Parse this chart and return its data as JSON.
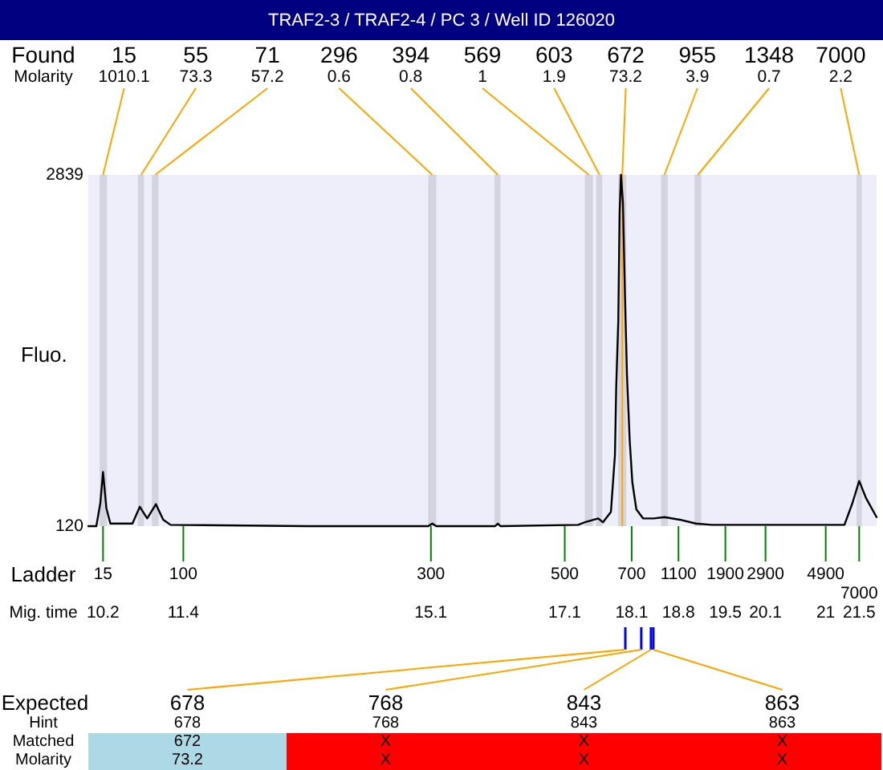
{
  "chart_data": {
    "type": "line",
    "title": "TRAF2-3 / TRAF2-4 / PC 3 / Well ID 126020",
    "xlabel": "Mig. time",
    "ylabel": "Fluo.",
    "x": [
      9.98,
      10.1,
      10.16,
      10.2,
      10.25,
      10.31,
      10.64,
      10.75,
      10.86,
      10.99,
      11.1,
      11.21,
      13.27,
      15.06,
      15.12,
      15.18,
      16.06,
      16.1,
      16.14,
      17.3,
      17.4,
      17.6,
      17.67,
      17.79,
      17.85,
      17.87,
      17.9,
      17.92,
      17.94,
      17.97,
      18.0,
      18.03,
      18.07,
      18.11,
      18.17,
      18.27,
      18.43,
      18.59,
      18.82,
      19.06,
      19.3,
      21.28,
      21.4,
      21.5,
      21.6,
      21.76
    ],
    "values": [
      120,
      120,
      300,
      540,
      260,
      140,
      140,
      270,
      180,
      290,
      170,
      130,
      120,
      120,
      140,
      120,
      120,
      140,
      120,
      130,
      150,
      180,
      150,
      230,
      670,
      1210,
      1710,
      2540,
      2839,
      2620,
      1910,
      1290,
      790,
      460,
      250,
      180,
      180,
      190,
      170,
      140,
      130,
      130,
      300,
      470,
      340,
      190
    ],
    "color": "#000000",
    "xlim": [
      9.98,
      21.76
    ],
    "xticks": [
      10.2,
      11.4,
      15.1,
      17.1,
      18.1,
      18.8,
      19.5,
      20.1,
      21,
      21.5
    ],
    "ylim": [
      120,
      2839
    ],
    "yticks": [
      120,
      2839
    ],
    "bands": [
      {
        "axis": "x",
        "from": 10.15,
        "to": 10.26,
        "label": "15",
        "color": "#d4d4e0"
      },
      {
        "axis": "x",
        "from": 10.72,
        "to": 10.81,
        "label": "55",
        "color": "#d4d4e0"
      },
      {
        "axis": "x",
        "from": 10.93,
        "to": 11.03,
        "label": "71",
        "color": "#d4d4e0"
      },
      {
        "axis": "x",
        "from": 15.06,
        "to": 15.18,
        "label": "296",
        "color": "#d4d4e0"
      },
      {
        "axis": "x",
        "from": 16.05,
        "to": 16.14,
        "label": "394",
        "color": "#d4d4e0"
      },
      {
        "axis": "x",
        "from": 17.4,
        "to": 17.52,
        "label": "569",
        "color": "#d4d4e0"
      },
      {
        "axis": "x",
        "from": 17.57,
        "to": 17.66,
        "label": "603",
        "color": "#d4d4e0"
      },
      {
        "axis": "x",
        "from": 17.9,
        "to": 18.02,
        "label": "672",
        "color": "#d4d4e0"
      },
      {
        "axis": "x",
        "from": 18.54,
        "to": 18.64,
        "label": "955",
        "color": "#d4d4e0"
      },
      {
        "axis": "x",
        "from": 19.04,
        "to": 19.14,
        "label": "1348",
        "color": "#d4d4e0"
      },
      {
        "axis": "x",
        "from": 21.46,
        "to": 21.54,
        "label": "7000",
        "color": "#d4d4e0"
      }
    ],
    "ref_lines": [
      {
        "axis": "x",
        "value": 17.96,
        "color": "#ffa500"
      }
    ],
    "annotations": [
      "Found",
      "Molarity",
      {
        "text": "1010.1",
        "x": 10.2,
        "y": 2839
      },
      {
        "text": "73.3",
        "x": 10.77,
        "y": 2839
      },
      {
        "text": "57.2",
        "x": 10.98,
        "y": 2839
      },
      {
        "text": "0.6",
        "x": 15.12,
        "y": 2839
      },
      {
        "text": "0.8",
        "x": 16.1,
        "y": 2839
      },
      {
        "text": "1",
        "x": 17.46,
        "y": 2839
      },
      {
        "text": "1.9",
        "x": 17.62,
        "y": 2839
      },
      {
        "text": "73.2",
        "x": 17.96,
        "y": 2839
      },
      {
        "text": "3.9",
        "x": 18.59,
        "y": 2839
      },
      {
        "text": "0.7",
        "x": 19.09,
        "y": 2839
      },
      {
        "text": "2.2",
        "x": 21.5,
        "y": 2839
      },
      "Ladder",
      "15",
      "100",
      "300",
      "500",
      "700",
      "1100",
      "1900",
      "2900",
      "4900",
      "7000",
      "Expected",
      "Hint",
      "Matched",
      "Molarity",
      "678",
      "768",
      "843",
      "863",
      "678",
      "768",
      "843",
      "863",
      "672",
      "X",
      "X",
      "X",
      "73.2",
      "X",
      "X",
      "X"
    ]
  }
}
